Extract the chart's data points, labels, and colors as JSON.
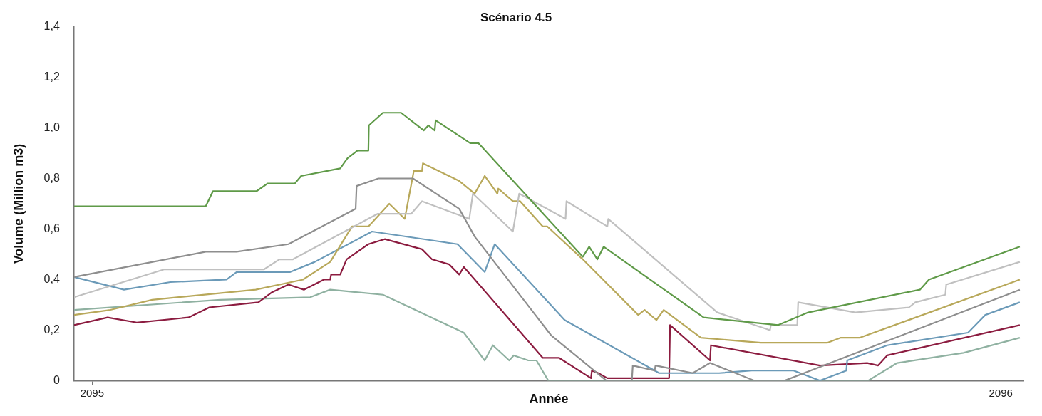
{
  "chart_data": {
    "type": "line",
    "title": "Scénario 4.5",
    "xlabel": "Année",
    "ylabel": "Volume (Million m3)",
    "xlim": [
      2094.98,
      2096.025
    ],
    "xticks": [
      2095,
      2096
    ],
    "ylim": [
      0,
      1.4
    ],
    "yticks": [
      0,
      {
        "value": 0.2,
        "label": "0,2"
      },
      {
        "value": 0.4,
        "label": "0,4"
      },
      {
        "value": 0.6,
        "label": "0,6"
      },
      {
        "value": 0.8,
        "label": "0,8"
      },
      {
        "value": 1.0,
        "label": "1,0"
      },
      {
        "value": 1.2,
        "label": "1,2"
      },
      {
        "value": 1.4,
        "label": "1,4"
      }
    ],
    "grid": false,
    "legend": false,
    "marker": "none",
    "line_style": "solid",
    "series": [
      {
        "color": "#5f9a48",
        "x": [
          2094.98,
          2095.125,
          2095.133,
          2095.181,
          2095.193,
          2095.223,
          2095.23,
          2095.273,
          2095.281,
          2095.292,
          2095.304,
          2095.3045,
          2095.32,
          2095.34,
          2095.365,
          2095.37,
          2095.377,
          2095.378,
          2095.416,
          2095.425,
          2095.54,
          2095.547,
          2095.556,
          2095.563,
          2095.673,
          2095.755,
          2095.788,
          2095.911,
          2095.921,
          2096.021
        ],
        "values": [
          0.69,
          0.69,
          0.75,
          0.75,
          0.78,
          0.78,
          0.81,
          0.84,
          0.88,
          0.91,
          0.91,
          1.01,
          1.06,
          1.06,
          0.99,
          1.01,
          0.99,
          1.03,
          0.94,
          0.94,
          0.49,
          0.53,
          0.48,
          0.53,
          0.25,
          0.22,
          0.27,
          0.36,
          0.4,
          0.53
        ]
      },
      {
        "color": "#8e8e8e",
        "x": [
          2094.98,
          2095.125,
          2095.159,
          2095.216,
          2095.29,
          2095.291,
          2095.315,
          2095.353,
          2095.404,
          2095.421,
          2095.505,
          2095.566,
          2095.594,
          2095.595,
          2095.619,
          2095.62,
          2095.661,
          2095.68,
          2095.729,
          2095.762,
          2096.021
        ],
        "values": [
          0.41,
          0.51,
          0.51,
          0.54,
          0.68,
          0.77,
          0.8,
          0.8,
          0.68,
          0.57,
          0.18,
          0,
          0,
          0.06,
          0.04,
          0.06,
          0.03,
          0.07,
          0,
          0,
          0.36
        ]
      },
      {
        "color": "#c0c0c0",
        "x": [
          2094.98,
          2095.079,
          2095.189,
          2095.206,
          2095.221,
          2095.314,
          2095.351,
          2095.363,
          2095.415,
          2095.419,
          2095.463,
          2095.47,
          2095.521,
          2095.522,
          2095.567,
          2095.568,
          2095.688,
          2095.746,
          2095.747,
          2095.776,
          2095.777,
          2095.84,
          2095.899,
          2095.906,
          2095.939,
          2095.94,
          2096.021
        ],
        "values": [
          0.33,
          0.44,
          0.44,
          0.48,
          0.48,
          0.66,
          0.66,
          0.71,
          0.64,
          0.74,
          0.59,
          0.74,
          0.64,
          0.71,
          0.61,
          0.64,
          0.27,
          0.2,
          0.22,
          0.22,
          0.31,
          0.27,
          0.29,
          0.31,
          0.34,
          0.38,
          0.47
        ]
      },
      {
        "color": "#b8a85a",
        "x": [
          2094.98,
          2095.02,
          2095.066,
          2095.18,
          2095.232,
          2095.262,
          2095.286,
          2095.304,
          2095.327,
          2095.344,
          2095.354,
          2095.363,
          2095.364,
          2095.404,
          2095.421,
          2095.432,
          2095.446,
          2095.447,
          2095.463,
          2095.471,
          2095.496,
          2095.501,
          2095.54,
          2095.601,
          2095.608,
          2095.621,
          2095.629,
          2095.67,
          2095.736,
          2095.809,
          2095.824,
          2095.845,
          2096.021
        ],
        "values": [
          0.26,
          0.28,
          0.32,
          0.36,
          0.4,
          0.47,
          0.61,
          0.61,
          0.7,
          0.64,
          0.83,
          0.83,
          0.86,
          0.79,
          0.74,
          0.81,
          0.74,
          0.76,
          0.71,
          0.71,
          0.61,
          0.61,
          0.48,
          0.26,
          0.28,
          0.24,
          0.28,
          0.17,
          0.15,
          0.15,
          0.17,
          0.17,
          0.4
        ]
      },
      {
        "color": "#6b9ab8",
        "x": [
          2094.98,
          2095.035,
          2095.086,
          2095.148,
          2095.159,
          2095.218,
          2095.245,
          2095.308,
          2095.402,
          2095.432,
          2095.443,
          2095.52,
          2095.624,
          2095.69,
          2095.726,
          2095.772,
          2095.801,
          2095.83,
          2095.831,
          2095.875,
          2095.964,
          2095.983,
          2096.021
        ],
        "values": [
          0.41,
          0.36,
          0.39,
          0.4,
          0.43,
          0.43,
          0.47,
          0.59,
          0.54,
          0.43,
          0.54,
          0.24,
          0.03,
          0.03,
          0.04,
          0.04,
          0,
          0.04,
          0.08,
          0.14,
          0.19,
          0.26,
          0.31
        ]
      },
      {
        "color": "#8c1c40",
        "x": [
          2094.98,
          2095.017,
          2095.049,
          2095.106,
          2095.129,
          2095.183,
          2095.198,
          2095.216,
          2095.233,
          2095.255,
          2095.262,
          2095.263,
          2095.273,
          2095.28,
          2095.304,
          2095.322,
          2095.363,
          2095.374,
          2095.393,
          2095.404,
          2095.409,
          2095.496,
          2095.514,
          2095.549,
          2095.55,
          2095.557,
          2095.567,
          2095.635,
          2095.636,
          2095.68,
          2095.681,
          2095.801,
          2095.853,
          2095.865,
          2095.875,
          2096.021
        ],
        "values": [
          0.22,
          0.25,
          0.23,
          0.25,
          0.29,
          0.31,
          0.35,
          0.38,
          0.36,
          0.4,
          0.4,
          0.42,
          0.42,
          0.48,
          0.54,
          0.56,
          0.52,
          0.48,
          0.46,
          0.42,
          0.45,
          0.09,
          0.09,
          0.01,
          0.04,
          0.03,
          0.01,
          0.01,
          0.22,
          0.08,
          0.14,
          0.06,
          0.07,
          0.06,
          0.1,
          0.22
        ]
      },
      {
        "color": "#8fb1a1",
        "x": [
          2094.98,
          2095.141,
          2095.24,
          2095.262,
          2095.32,
          2095.409,
          2095.432,
          2095.441,
          2095.459,
          2095.464,
          2095.48,
          2095.489,
          2095.502,
          2095.854,
          2095.886,
          2095.959,
          2096.021
        ],
        "values": [
          0.28,
          0.32,
          0.33,
          0.36,
          0.34,
          0.19,
          0.08,
          0.14,
          0.08,
          0.1,
          0.08,
          0.08,
          0,
          0,
          0.07,
          0.11,
          0.17
        ]
      }
    ]
  }
}
